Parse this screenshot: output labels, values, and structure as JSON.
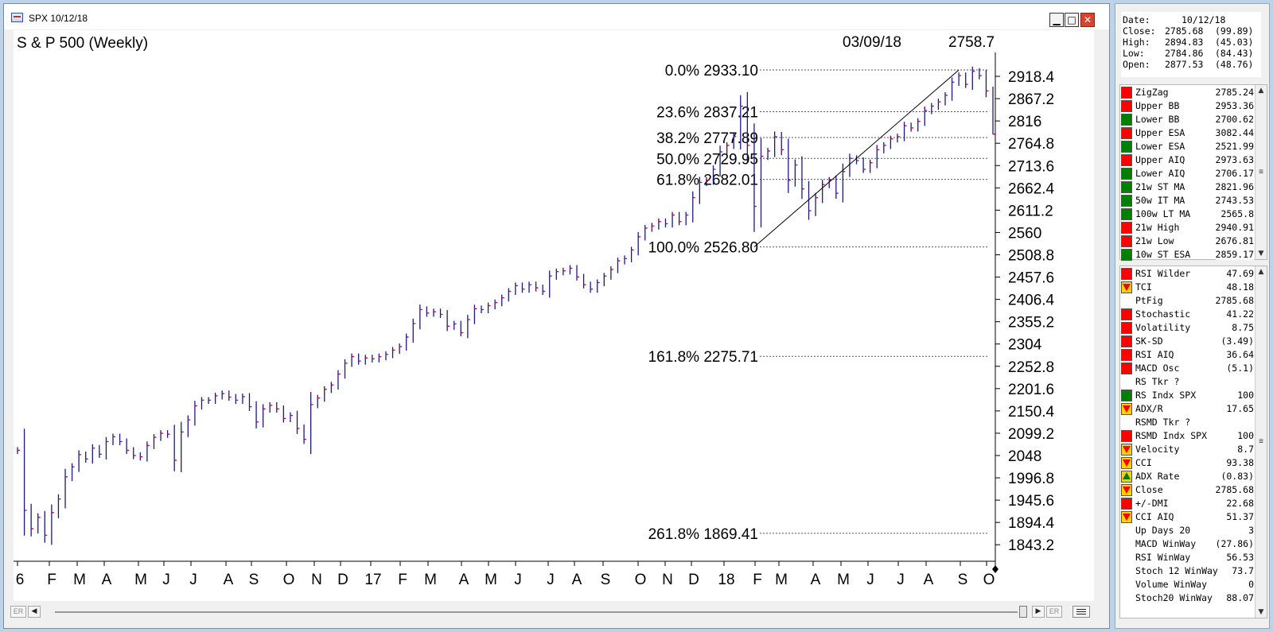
{
  "window": {
    "title": "SPX 10/12/18",
    "min_glyph": "▁",
    "max_glyph": "□",
    "close_glyph": "✕"
  },
  "chart_header": {
    "title": "S & P 500 (Weekly)",
    "cursor_date": "03/09/18",
    "cursor_value": "2758.7"
  },
  "chart_data": {
    "type": "ohlc",
    "title": "S & P 500 (Weekly)",
    "y_ticks": [
      2918.4,
      2867.2,
      2816,
      2764.8,
      2713.6,
      2662.4,
      2611.2,
      2560,
      2508.8,
      2457.6,
      2406.4,
      2355.2,
      2304,
      2252.8,
      2201.6,
      2150.4,
      2099.2,
      2048,
      1996.8,
      1945.6,
      1894.4,
      1843.2
    ],
    "ylim": [
      1819.9,
      2958.6
    ],
    "y_tick_labels": [
      "2918.4",
      "2867.2",
      "2816",
      "2764.8",
      "2713.6",
      "2662.4",
      "2611.2",
      "2560",
      "2508.8",
      "2457.6",
      "2406.4",
      "2355.2",
      "2304",
      "2252.8",
      "2201.6",
      "2150.4",
      "2099.2",
      "2048",
      "1996.8",
      "1945.6",
      "1894.4",
      "1843.2"
    ],
    "x_labels": [
      "6",
      "F",
      "M",
      "A",
      "M",
      "J",
      "J",
      "A",
      "S",
      "O",
      "N",
      "D",
      "17",
      "F",
      "M",
      "A",
      "M",
      "J",
      "J",
      "A",
      "S",
      "O",
      "N",
      "D",
      "18",
      "F",
      "M",
      "A",
      "M",
      "J",
      "J",
      "A",
      "S",
      "O"
    ],
    "fib_levels": [
      {
        "label": "0.0% 2933.10",
        "value": 2933.1
      },
      {
        "label": "23.6% 2837.21",
        "value": 2837.21
      },
      {
        "label": "38.2% 2777.89",
        "value": 2777.89
      },
      {
        "label": "50.0% 2729.95",
        "value": 2729.95
      },
      {
        "label": "61.8% 2682.01",
        "value": 2682.01
      },
      {
        "label": "100.0% 2526.80",
        "value": 2526.8
      },
      {
        "label": "161.8% 2275.71",
        "value": 2275.71
      },
      {
        "label": "261.8% 1869.41",
        "value": 1869.41
      }
    ],
    "trendline": {
      "from": [
        "2018-02-09",
        2526.8
      ],
      "to": [
        "2018-09-21",
        2933.1
      ]
    },
    "series_weekly_close": [
      2060,
      1922,
      1880,
      1906,
      1865,
      1917,
      1948,
      1999,
      2022,
      2050,
      2040,
      2065,
      2051,
      2080,
      2091,
      2080,
      2060,
      2048,
      2045,
      2071,
      2090,
      2099,
      2097,
      2037,
      2102,
      2130,
      2162,
      2175,
      2175,
      2185,
      2190,
      2182,
      2175,
      2183,
      2160,
      2125,
      2155,
      2163,
      2155,
      2133,
      2140,
      2110,
      2085,
      2165,
      2180,
      2200,
      2210,
      2235,
      2260,
      2275,
      2265,
      2272,
      2270,
      2275,
      2280,
      2290,
      2298,
      2320,
      2351,
      2383,
      2375,
      2378,
      2372,
      2345,
      2350,
      2330,
      2360,
      2385,
      2383,
      2392,
      2399,
      2410,
      2425,
      2438,
      2430,
      2440,
      2433,
      2425,
      2460,
      2470,
      2472,
      2478,
      2458,
      2440,
      2430,
      2445,
      2460,
      2475,
      2495,
      2500,
      2520,
      2550,
      2570,
      2575,
      2585,
      2580,
      2600,
      2585,
      2600,
      2640,
      2675,
      2680,
      2705,
      2745,
      2760,
      2780,
      2850,
      2760,
      2620,
      2735,
      2747,
      2780,
      2750,
      2680,
      2715,
      2660,
      2610,
      2640,
      2670,
      2680,
      2650,
      2700,
      2730,
      2725,
      2705,
      2720,
      2750,
      2760,
      2775,
      2780,
      2805,
      2800,
      2815,
      2840,
      2850,
      2860,
      2875,
      2905,
      2920,
      2900,
      2930,
      2920,
      2885,
      2785.68
    ],
    "last_bar": {
      "date": "10/12/18",
      "open": 2877.53,
      "high": 2894.83,
      "low": 2784.86,
      "close": 2785.68
    }
  },
  "scrollbar": {
    "left_label": "ER",
    "right_label": "ER",
    "left_arrow": "◀",
    "right_arrow": "▶"
  },
  "summary": {
    "rows": [
      {
        "label": "Date:",
        "value": "10/12/18",
        "change": ""
      },
      {
        "label": "Close:",
        "value": "2785.68",
        "change": "(99.89)"
      },
      {
        "label": "High:",
        "value": "2894.83",
        "change": "(45.03)"
      },
      {
        "label": "Low:",
        "value": "2784.86",
        "change": "(84.43)"
      },
      {
        "label": "Open:",
        "value": "2877.53",
        "change": "(48.76)"
      }
    ]
  },
  "indicators_a": [
    {
      "label": "ZigZag",
      "value": "2785.24",
      "signal": "red"
    },
    {
      "label": "Upper BB",
      "value": "2953.36",
      "signal": "red"
    },
    {
      "label": "Lower BB",
      "value": "2700.62",
      "signal": "green"
    },
    {
      "label": "Upper ESA",
      "value": "3082.44",
      "signal": "red"
    },
    {
      "label": "Lower ESA",
      "value": "2521.99",
      "signal": "green"
    },
    {
      "label": "Upper AIQ",
      "value": "2973.63",
      "signal": "red"
    },
    {
      "label": "Lower AIQ",
      "value": "2706.17",
      "signal": "green"
    },
    {
      "label": "21w ST MA",
      "value": "2821.96",
      "signal": "green"
    },
    {
      "label": "50w IT MA",
      "value": "2743.53",
      "signal": "green"
    },
    {
      "label": "100w LT MA",
      "value": "2565.8",
      "signal": "green"
    },
    {
      "label": "21w High",
      "value": "2940.91",
      "signal": "red"
    },
    {
      "label": "21w Low",
      "value": "2676.81",
      "signal": "red"
    },
    {
      "label": "10w ST ESA",
      "value": "2859.17",
      "signal": "green"
    }
  ],
  "indicators_b": [
    {
      "label": "RSI Wilder",
      "value": "47.69",
      "signal": "red"
    },
    {
      "label": "TCI",
      "value": "48.18",
      "signal": "down"
    },
    {
      "label": "PtFig",
      "value": "2785.68",
      "signal": "none"
    },
    {
      "label": "Stochastic",
      "value": "41.22",
      "signal": "red"
    },
    {
      "label": "Volatility",
      "value": "8.75",
      "signal": "red"
    },
    {
      "label": "SK-SD",
      "value": "(3.49)",
      "signal": "red"
    },
    {
      "label": "RSI AIQ",
      "value": "36.64",
      "signal": "red"
    },
    {
      "label": "MACD Osc",
      "value": "(5.1)",
      "signal": "red"
    },
    {
      "label": "RS Tkr ?",
      "value": "",
      "signal": "none"
    },
    {
      "label": "RS Indx SPX",
      "value": "100",
      "signal": "green"
    },
    {
      "label": "ADX/R",
      "value": "17.65",
      "signal": "down"
    },
    {
      "label": "RSMD Tkr ?",
      "value": "",
      "signal": "none"
    },
    {
      "label": "RSMD Indx SPX",
      "value": "100",
      "signal": "red"
    },
    {
      "label": "Velocity",
      "value": "8.7",
      "signal": "down"
    },
    {
      "label": "CCI",
      "value": "93.38",
      "signal": "down"
    },
    {
      "label": "ADX Rate",
      "value": "(0.83)",
      "signal": "up"
    },
    {
      "label": "Close",
      "value": "2785.68",
      "signal": "down"
    },
    {
      "label": "+/-DMI",
      "value": "22.68",
      "signal": "red"
    },
    {
      "label": "CCI AIQ",
      "value": "51.37",
      "signal": "down"
    },
    {
      "label": "Up Days 20",
      "value": "3",
      "signal": "none"
    },
    {
      "label": "MACD WinWay",
      "value": "(27.86)",
      "signal": "none"
    },
    {
      "label": "RSI WinWay",
      "value": "56.53",
      "signal": "none"
    },
    {
      "label": "Stoch 12 WinWay",
      "value": "73.7",
      "signal": "none"
    },
    {
      "label": "Volume WinWay",
      "value": "0",
      "signal": "none"
    },
    {
      "label": "Stoch20 WinWay",
      "value": "88.07",
      "signal": "none"
    }
  ]
}
